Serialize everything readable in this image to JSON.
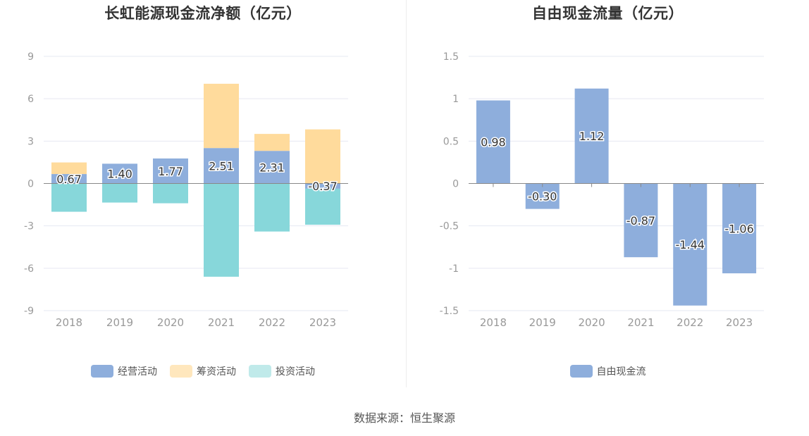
{
  "chart_data": [
    {
      "type": "bar",
      "stacked": true,
      "title": "长虹能源现金流净额（亿元）",
      "categories": [
        "2018",
        "2019",
        "2020",
        "2021",
        "2022",
        "2023"
      ],
      "ylim": [
        -9,
        9
      ],
      "yticks": [
        "9",
        "6",
        "3",
        "0",
        "-3",
        "-6",
        "-9"
      ],
      "series": [
        {
          "name": "经营活动",
          "color": "#8eaedc",
          "values": [
            0.67,
            1.4,
            1.77,
            2.51,
            2.31,
            -0.37
          ],
          "labels": [
            "0.67",
            "1.40",
            "1.77",
            "2.51",
            "2.31",
            "-0.37"
          ]
        },
        {
          "name": "筹资活动",
          "color": "#ffdb9c",
          "values": [
            0.82,
            0.0,
            0.0,
            4.55,
            1.2,
            3.83
          ]
        },
        {
          "name": "投资活动",
          "color": "#87d7da",
          "values": [
            -2.0,
            -1.35,
            -1.4,
            -6.6,
            -3.4,
            -2.55
          ]
        }
      ],
      "legend_position": "bottom-center",
      "grid": true
    },
    {
      "type": "bar",
      "title": "自由现金流量（亿元）",
      "categories": [
        "2018",
        "2019",
        "2020",
        "2021",
        "2022",
        "2023"
      ],
      "ylim": [
        -1.5,
        1.5
      ],
      "yticks": [
        "1.5",
        "1",
        "0.5",
        "0",
        "-0.5",
        "-1",
        "-1.5"
      ],
      "series": [
        {
          "name": "自由现金流",
          "color": "#8eaedc",
          "values": [
            0.98,
            -0.3,
            1.12,
            -0.87,
            -1.44,
            -1.06
          ],
          "labels": [
            "0.98",
            "-0.30",
            "1.12",
            "-0.87",
            "-1.44",
            "-1.06"
          ]
        }
      ],
      "legend_position": "bottom-center",
      "grid": true
    }
  ],
  "legend_left": [
    {
      "label": "经营活动",
      "color": "#8eaedc"
    },
    {
      "label": "筹资活动",
      "color": "#ffe7bd"
    },
    {
      "label": "投资活动",
      "color": "#c0eaea"
    }
  ],
  "legend_right": [
    {
      "label": "自由现金流",
      "color": "#8eaedc"
    }
  ],
  "source": "数据来源：恒生聚源"
}
